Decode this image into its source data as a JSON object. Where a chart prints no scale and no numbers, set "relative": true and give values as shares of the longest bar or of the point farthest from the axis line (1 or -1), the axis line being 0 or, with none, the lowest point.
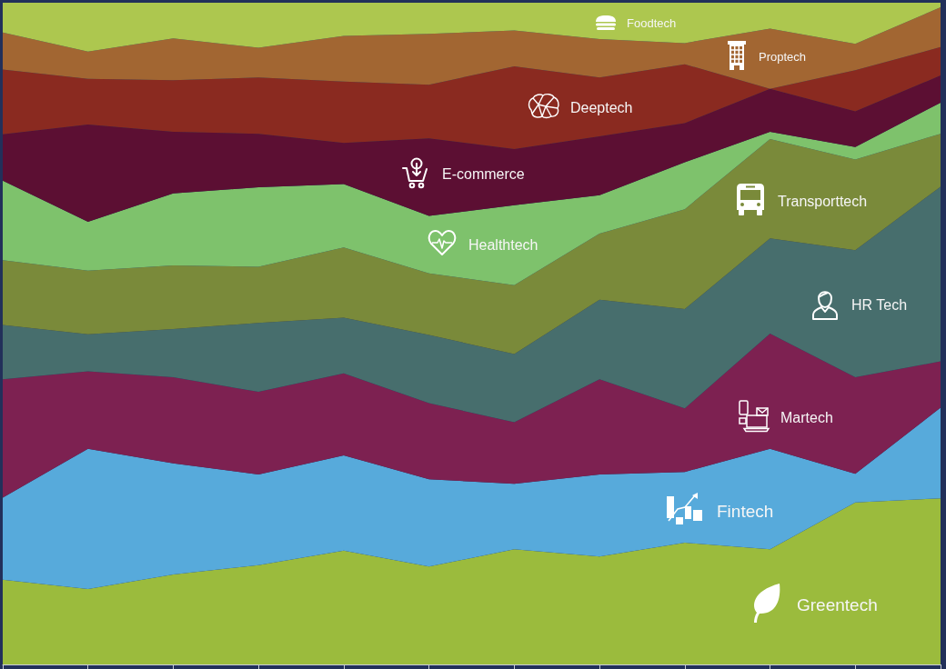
{
  "chart_data": {
    "type": "area",
    "stacked": true,
    "relative": true,
    "tick_labels": false,
    "categories": [
      null,
      null,
      null,
      null,
      null,
      null,
      null,
      null,
      null,
      null,
      null,
      null
    ],
    "series": [
      {
        "name": "Greentech",
        "color": "#9bbb3d",
        "values": [
          0.128,
          0.114,
          0.136,
          0.15,
          0.172,
          0.148,
          0.174,
          0.163,
          0.184,
          0.174,
          0.245,
          0.251
        ]
      },
      {
        "name": "Fintech",
        "color": "#57aadb",
        "values": [
          0.124,
          0.212,
          0.168,
          0.137,
          0.144,
          0.132,
          0.099,
          0.124,
          0.107,
          0.152,
          0.043,
          0.137
        ]
      },
      {
        "name": "Martech",
        "color": "#7d2151",
        "values": [
          0.179,
          0.117,
          0.13,
          0.125,
          0.124,
          0.115,
          0.093,
          0.144,
          0.096,
          0.174,
          0.146,
          0.07
        ]
      },
      {
        "name": "HR Tech",
        "color": "#476e6d",
        "values": [
          0.082,
          0.056,
          0.073,
          0.104,
          0.084,
          0.103,
          0.103,
          0.12,
          0.15,
          0.144,
          0.192,
          0.264
        ]
      },
      {
        "name": "Transporttech",
        "color": "#7a8a3a",
        "values": [
          0.098,
          0.096,
          0.096,
          0.085,
          0.106,
          0.093,
          0.104,
          0.1,
          0.151,
          0.15,
          0.137,
          0.08
        ]
      },
      {
        "name": "Healthtech",
        "color": "#7ec26c",
        "values": [
          0.12,
          0.074,
          0.109,
          0.12,
          0.096,
          0.087,
          0.121,
          0.058,
          0.071,
          0.011,
          0.019,
          0.047
        ]
      },
      {
        "name": "E-commerce",
        "color": "#5c0f33",
        "values": [
          0.07,
          0.147,
          0.093,
          0.081,
          0.062,
          0.117,
          0.085,
          0.089,
          0.059,
          0.065,
          0.054,
          0.041
        ]
      },
      {
        "name": "Deeptech",
        "color": "#8a2a20",
        "values": [
          0.098,
          0.069,
          0.078,
          0.085,
          0.093,
          0.081,
          0.125,
          0.089,
          0.089,
          0,
          0.062,
          0.043
        ]
      },
      {
        "name": "Proptech",
        "color": "#a26632",
        "values": [
          0.056,
          0.041,
          0.063,
          0.045,
          0.069,
          0.077,
          0.054,
          0.058,
          0.032,
          0.091,
          0.04,
          0.06
        ]
      },
      {
        "name": "Foodtech",
        "color": "#adc74f",
        "values": [
          0.045,
          0.074,
          0.054,
          0.068,
          0.05,
          0.047,
          0.042,
          0.055,
          0.061,
          0.039,
          0.062,
          0.007
        ]
      }
    ]
  }
}
